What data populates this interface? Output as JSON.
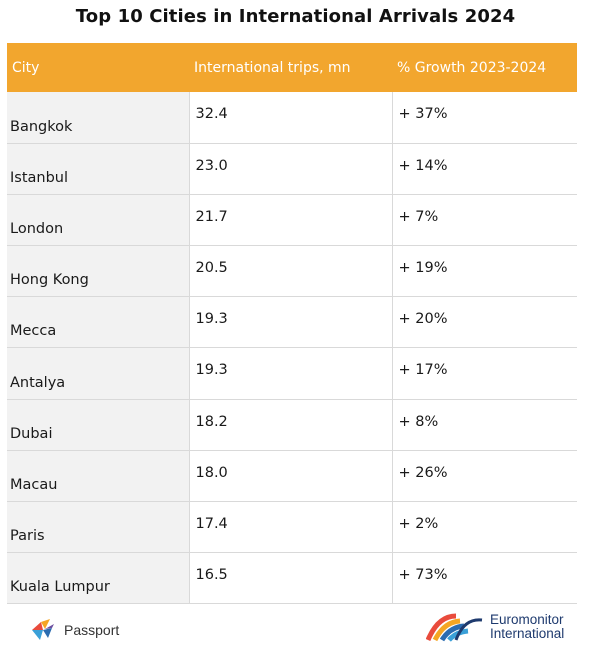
{
  "chart_data": {
    "type": "table",
    "title": "Top 10 Cities in International Arrivals 2024",
    "columns": [
      "City",
      "International trips, mn",
      "% Growth 2023-2024"
    ],
    "rows": [
      {
        "city": "Bangkok",
        "trips": "32.4",
        "growth": "+ 37%"
      },
      {
        "city": "Istanbul",
        "trips": "23.0",
        "growth": "+ 14%"
      },
      {
        "city": "London",
        "trips": "21.7",
        "growth": "+ 7%"
      },
      {
        "city": "Hong Kong",
        "trips": "20.5",
        "growth": "+ 19%"
      },
      {
        "city": "Mecca",
        "trips": "19.3",
        "growth": "+ 20%"
      },
      {
        "city": "Antalya",
        "trips": "19.3",
        "growth": "+ 17%"
      },
      {
        "city": "Dubai",
        "trips": "18.2",
        "growth": "+ 8%"
      },
      {
        "city": "Macau",
        "trips": "18.0",
        "growth": "+ 26%"
      },
      {
        "city": "Paris",
        "trips": "17.4",
        "growth": "+ 2%"
      },
      {
        "city": "Kuala Lumpur",
        "trips": "16.5",
        "growth": "+ 73%"
      }
    ]
  },
  "footer": {
    "passport_label": "Passport",
    "euromonitor_line1": "Euromonitor",
    "euromonitor_line2": "International",
    "passport_icon": "passport-logo-icon",
    "euromonitor_icon": "euromonitor-logo-icon"
  },
  "colors": {
    "header_bg": "#f2a62e",
    "header_text": "#ffffff",
    "city_cell_bg": "#f2f2f2",
    "grid_line": "#d9d9d9"
  }
}
